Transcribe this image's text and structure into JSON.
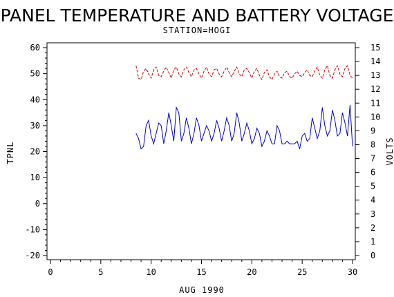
{
  "chart_data": {
    "type": "line",
    "title": "PANEL TEMPERATURE AND BATTERY VOLTAGE",
    "subtitle": "STATION=HOGI",
    "xlabel": "AUG 1990",
    "ylabel_left": "TPNL",
    "ylabel_right": "VOLTS",
    "xlim": [
      0,
      30
    ],
    "ylim_left": [
      -20,
      60
    ],
    "ylim_right": [
      0,
      15
    ],
    "x_ticks": [
      "0",
      "5",
      "10",
      "15",
      "20",
      "25",
      "30"
    ],
    "y_left_ticks": [
      "60",
      "50",
      "40",
      "30",
      "20",
      "10",
      "0",
      "-10",
      "-20"
    ],
    "y_right_ticks": [
      "15",
      "14",
      "13",
      "12",
      "11",
      "10",
      "9",
      "8",
      "7",
      "6",
      "5",
      "4",
      "3",
      "2",
      "1",
      "0"
    ],
    "grid": false,
    "series": [
      {
        "axis": "left",
        "color": "#0000cc",
        "style": "solid",
        "x": [
          8.5,
          8.75,
          9.0,
          9.25,
          9.5,
          9.75,
          10.0,
          10.25,
          10.5,
          10.75,
          11.0,
          11.25,
          11.5,
          11.75,
          12.0,
          12.25,
          12.5,
          12.75,
          13.0,
          13.25,
          13.5,
          13.75,
          14.0,
          14.25,
          14.5,
          14.75,
          15.0,
          15.25,
          15.5,
          15.75,
          16.0,
          16.25,
          16.5,
          16.75,
          17.0,
          17.25,
          17.5,
          17.75,
          18.0,
          18.25,
          18.5,
          18.75,
          19.0,
          19.25,
          19.5,
          19.75,
          20.0,
          20.25,
          20.5,
          20.75,
          21.0,
          21.25,
          21.5,
          21.75,
          22.0,
          22.25,
          22.5,
          22.75,
          23.0,
          23.25,
          23.5,
          23.75,
          24.0,
          24.25,
          24.5,
          24.75,
          25.0,
          25.25,
          25.5,
          25.75,
          26.0,
          26.25,
          26.5,
          26.75,
          27.0,
          27.25,
          27.5,
          27.75,
          28.0,
          28.25,
          28.5,
          28.75,
          29.0,
          29.25,
          29.5,
          29.75,
          30.0
        ],
        "values": [
          27,
          25,
          21,
          22,
          30,
          32,
          26,
          23,
          27,
          31,
          30,
          23,
          28,
          35,
          30,
          24,
          37,
          35,
          24,
          27,
          33,
          29,
          23,
          27,
          33,
          30,
          24,
          27,
          30,
          28,
          24,
          27,
          32,
          29,
          24,
          28,
          33,
          30,
          24,
          27,
          35,
          31,
          24,
          27,
          31,
          28,
          23,
          25,
          29,
          27,
          22,
          24,
          28,
          26,
          23,
          23,
          30,
          28,
          23,
          23,
          24,
          23,
          23,
          23,
          24,
          21,
          26,
          27,
          24,
          25,
          33,
          29,
          25,
          28,
          37,
          30,
          26,
          28,
          36,
          32,
          26,
          27,
          35,
          31,
          26,
          38,
          22
        ]
      },
      {
        "axis": "right",
        "color": "#cc0000",
        "style": "dashed",
        "x": [
          8.5,
          8.75,
          9.0,
          9.25,
          9.5,
          9.75,
          10.0,
          10.25,
          10.5,
          10.75,
          11.0,
          11.25,
          11.5,
          11.75,
          12.0,
          12.25,
          12.5,
          12.75,
          13.0,
          13.25,
          13.5,
          13.75,
          14.0,
          14.25,
          14.5,
          14.75,
          15.0,
          15.25,
          15.5,
          15.75,
          16.0,
          16.25,
          16.5,
          16.75,
          17.0,
          17.25,
          17.5,
          17.75,
          18.0,
          18.25,
          18.5,
          18.75,
          19.0,
          19.25,
          19.5,
          19.75,
          20.0,
          20.25,
          20.5,
          20.75,
          21.0,
          21.25,
          21.5,
          21.75,
          22.0,
          22.25,
          22.5,
          22.75,
          23.0,
          23.25,
          23.5,
          23.75,
          24.0,
          24.25,
          24.5,
          24.75,
          25.0,
          25.25,
          25.5,
          25.75,
          26.0,
          26.25,
          26.5,
          26.75,
          27.0,
          27.25,
          27.5,
          27.75,
          28.0,
          28.25,
          28.5,
          28.75,
          29.0,
          29.25,
          29.5,
          29.75,
          30.0
        ],
        "values": [
          13.7,
          12.8,
          12.7,
          13.3,
          13.5,
          13.1,
          12.8,
          13.4,
          13.6,
          13.0,
          12.9,
          13.3,
          13.6,
          13.2,
          12.8,
          13.4,
          13.6,
          13.1,
          12.9,
          13.4,
          13.6,
          13.2,
          12.9,
          13.4,
          13.5,
          13.1,
          12.8,
          13.3,
          13.6,
          13.1,
          12.9,
          13.4,
          13.5,
          13.1,
          12.9,
          13.3,
          13.6,
          13.2,
          12.9,
          13.3,
          13.6,
          13.1,
          12.9,
          13.4,
          13.5,
          13.2,
          12.8,
          13.3,
          13.5,
          13.0,
          12.7,
          13.2,
          13.4,
          12.9,
          12.7,
          13.1,
          13.3,
          12.9,
          12.8,
          13.2,
          13.3,
          12.9,
          12.8,
          13.1,
          13.3,
          13.0,
          12.9,
          13.2,
          13.4,
          13.0,
          12.9,
          13.3,
          13.6,
          13.0,
          12.8,
          13.4,
          13.7,
          13.0,
          12.8,
          13.4,
          13.7,
          13.1,
          12.9,
          13.5,
          13.7,
          13.0,
          12.8
        ]
      }
    ]
  }
}
